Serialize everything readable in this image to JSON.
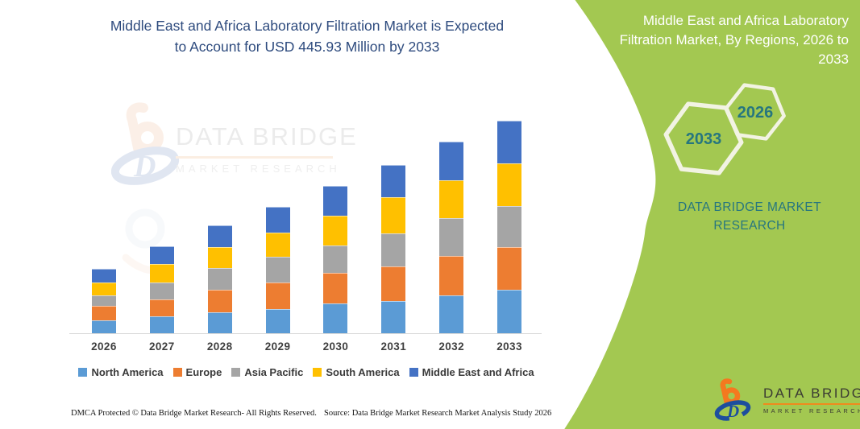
{
  "header": {
    "title_lines": [
      "Middle East and Africa Laboratory Filtration Market is Expected",
      "to Account for USD 445.93 Million by 2033"
    ],
    "title_color": "#2E4B7E"
  },
  "chart_data": {
    "type": "bar",
    "stacked": true,
    "title": "Middle East and Africa Laboratory Filtration Market is Expected to Account for USD 445.93 Million by 2033",
    "unit": "USD Million",
    "categories": [
      "2026",
      "2027",
      "2028",
      "2029",
      "2030",
      "2031",
      "2032",
      "2033"
    ],
    "series": [
      {
        "name": "North America",
        "color": "#5B9BD5",
        "values": [
          27.0,
          35.5,
          44.8,
          51.3,
          62.0,
          67.6,
          78.9,
          91.2
        ]
      },
      {
        "name": "Europe",
        "color": "#ED7D31",
        "values": [
          30.9,
          36.0,
          46.4,
          55.7,
          65.4,
          72.1,
          82.8,
          90.1
        ]
      },
      {
        "name": "Asia Pacific",
        "color": "#A5A5A5",
        "values": [
          20.8,
          35.5,
          45.6,
          54.0,
          56.2,
          70.4,
          80.4,
          85.6
        ]
      },
      {
        "name": "South America",
        "color": "#FFC000",
        "values": [
          28.2,
          37.8,
          43.9,
          50.0,
          63.0,
          74.8,
          78.9,
          90.0
        ]
      },
      {
        "name": "Middle East and Africa",
        "color": "#4472C4",
        "values": [
          28.2,
          37.2,
          45.6,
          53.5,
          63.2,
          68.7,
          81.1,
          89.0
        ]
      }
    ],
    "xlabel": "",
    "ylabel": "",
    "ylim": [
      0,
      450
    ],
    "gridlines": false,
    "legend_position": "bottom",
    "axis_line_color": "#D9D9D9",
    "xtick_color": "#3F3F3F"
  },
  "watermark": {
    "line1": "DATA BRIDGE",
    "line2": "MARKET RESEARCH"
  },
  "footer": {
    "left": "DMCA Protected © Data Bridge Market Research-  All Rights Reserved.",
    "right": "Source: Data Bridge Market Research  Market Analysis Study 2026"
  },
  "right_panel": {
    "title_lines": [
      "Middle East and Africa Laboratory",
      "Filtration Market, By Regions, 2026 to",
      "2033"
    ],
    "hexagons": [
      {
        "label": "2033"
      },
      {
        "label": "2026"
      }
    ],
    "brand_lines": [
      "DATA BRIDGE MARKET",
      "RESEARCH"
    ],
    "logo": {
      "line1": "DATA BRIDGE",
      "line2": "MARKET RESEARCH"
    },
    "colors": {
      "background": "#A3C851",
      "teal": "#26767F",
      "hex_stroke": "#F2F3E3",
      "title": "#FFFFFF",
      "logo_orange": "#F4791F",
      "logo_blue": "#1D4E9E"
    }
  }
}
